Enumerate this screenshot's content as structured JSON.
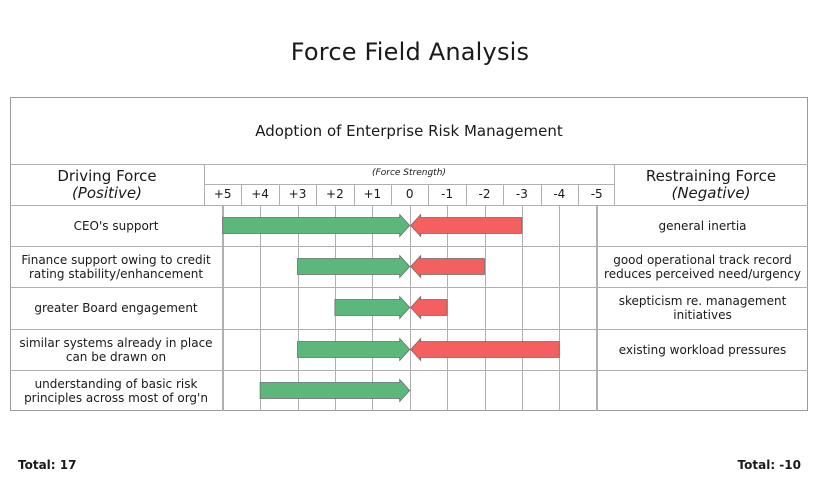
{
  "title": "Force Field Analysis",
  "subject": "Adoption of Enterprise Risk Management",
  "driving_header": {
    "title": "Driving Force",
    "sub": "(Positive)"
  },
  "restraining_header": {
    "title": "Restraining Force",
    "sub": "(Negative)"
  },
  "strength_label": "(Force Strength)",
  "ticks": [
    "+5",
    "+4",
    "+3",
    "+2",
    "+1",
    "0",
    "-1",
    "-2",
    "-3",
    "-4",
    "-5"
  ],
  "rows": [
    {
      "driving": "CEO's support",
      "driving_strength": 5,
      "restraining": "general inertia",
      "restraining_strength": -3
    },
    {
      "driving": "Finance support owing to credit rating stability/enhancement",
      "driving_strength": 3,
      "restraining": "good operational track record reduces perceived need/urgency",
      "restraining_strength": -2
    },
    {
      "driving": "greater Board engagement",
      "driving_strength": 2,
      "restraining": "skepticism re. management initiatives",
      "restraining_strength": -1
    },
    {
      "driving": "similar systems already in place can be drawn on",
      "driving_strength": 3,
      "restraining": "existing workload pressures",
      "restraining_strength": -4
    },
    {
      "driving": "understanding of basic risk principles across most of org'n",
      "driving_strength": 4,
      "restraining": "",
      "restraining_strength": 0
    }
  ],
  "totals": {
    "driving": "Total: 17",
    "restraining": "Total: -10"
  },
  "colors": {
    "driving": "#5cb87a",
    "restraining": "#f45f5f",
    "grid": "#b0b0b0"
  }
}
